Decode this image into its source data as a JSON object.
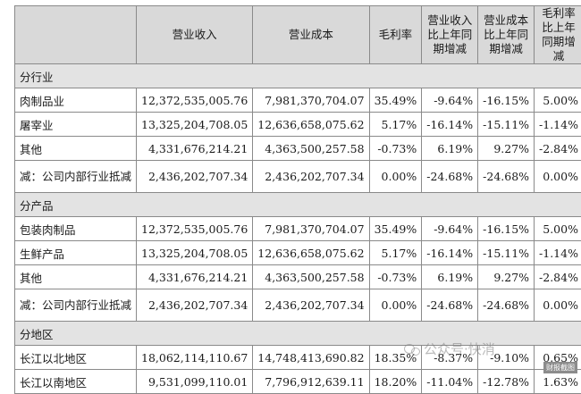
{
  "table": {
    "headers": [
      "",
      "营业收入",
      "营业成本",
      "毛利率",
      "营业收入比上年同期增减",
      "营业成本比上年同期增减",
      "毛利率比上年同期增减"
    ],
    "sections": [
      {
        "title": "分行业",
        "rows": [
          [
            "肉制品业",
            "12,372,535,005.76",
            "7,981,370,704.07",
            "35.49%",
            "-9.64%",
            "-16.15%",
            "5.00%"
          ],
          [
            "屠宰业",
            "13,325,204,708.05",
            "12,636,658,075.62",
            "5.17%",
            "-16.14%",
            "-15.11%",
            "-1.14%"
          ],
          [
            "其他",
            "4,331,676,214.21",
            "4,363,500,257.58",
            "-0.73%",
            "6.19%",
            "9.27%",
            "-2.84%"
          ],
          [
            "减：公司内部行业抵减",
            "2,436,202,707.34",
            "2,436,202,707.34",
            "0.00%",
            "-24.68%",
            "-24.68%",
            "0.00%"
          ]
        ]
      },
      {
        "title": "分产品",
        "rows": [
          [
            "包装肉制品",
            "12,372,535,005.76",
            "7,981,370,704.07",
            "35.49%",
            "-9.64%",
            "-16.15%",
            "5.00%"
          ],
          [
            "生鲜产品",
            "13,325,204,708.05",
            "12,636,658,075.62",
            "5.17%",
            "-16.14%",
            "-15.11%",
            "-1.14%"
          ],
          [
            "其他",
            "4,331,676,214.21",
            "4,363,500,257.58",
            "-0.73%",
            "6.19%",
            "9.27%",
            "-2.84%"
          ],
          [
            "减：公司内部行业抵减",
            "2,436,202,707.34",
            "2,436,202,707.34",
            "0.00%",
            "-24.68%",
            "-24.68%",
            "0.00%"
          ]
        ]
      },
      {
        "title": "分地区",
        "rows": [
          [
            "长江以北地区",
            "18,062,114,110.67",
            "14,748,413,690.82",
            "18.35%",
            "-8.37%",
            "-9.10%",
            "0.65%"
          ],
          [
            "长江以南地区",
            "9,531,099,110.01",
            "7,796,912,639.11",
            "18.20%",
            "-11.04%",
            "-12.78%",
            "1.63%"
          ]
        ]
      }
    ]
  },
  "watermark": {
    "text": "公众号·快消"
  },
  "source_tag": "财报截图"
}
